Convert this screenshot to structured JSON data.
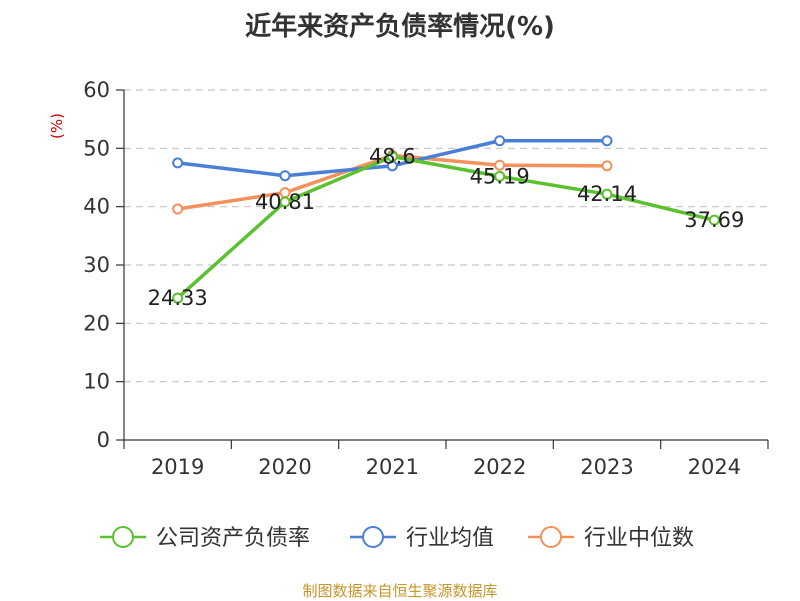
{
  "chart_data": {
    "type": "line",
    "title": "近年来资产负债率情况(%)",
    "ylabel": "(%)",
    "xlabel": "",
    "categories": [
      "2019",
      "2020",
      "2021",
      "2022",
      "2023",
      "2024"
    ],
    "ylim": [
      0,
      60
    ],
    "yticks": [
      0,
      10,
      20,
      30,
      40,
      50,
      60
    ],
    "grid": true,
    "legend_position": "bottom",
    "series": [
      {
        "name": "公司资产负债率",
        "color": "#5cc12f",
        "values": [
          24.33,
          40.81,
          48.6,
          45.19,
          42.14,
          37.69
        ],
        "labels": [
          "24.33",
          "40.81",
          "48.6",
          "45.19",
          "42.14",
          "37.69"
        ]
      },
      {
        "name": "行业均值",
        "color": "#4a7fd8",
        "values": [
          47.5,
          45.3,
          47.0,
          51.3,
          51.3,
          null
        ]
      },
      {
        "name": "行业中位数",
        "color": "#f2915a",
        "values": [
          39.6,
          42.4,
          48.8,
          47.1,
          47.0,
          null
        ]
      }
    ]
  },
  "source_note": "制图数据来自恒生聚源数据库"
}
